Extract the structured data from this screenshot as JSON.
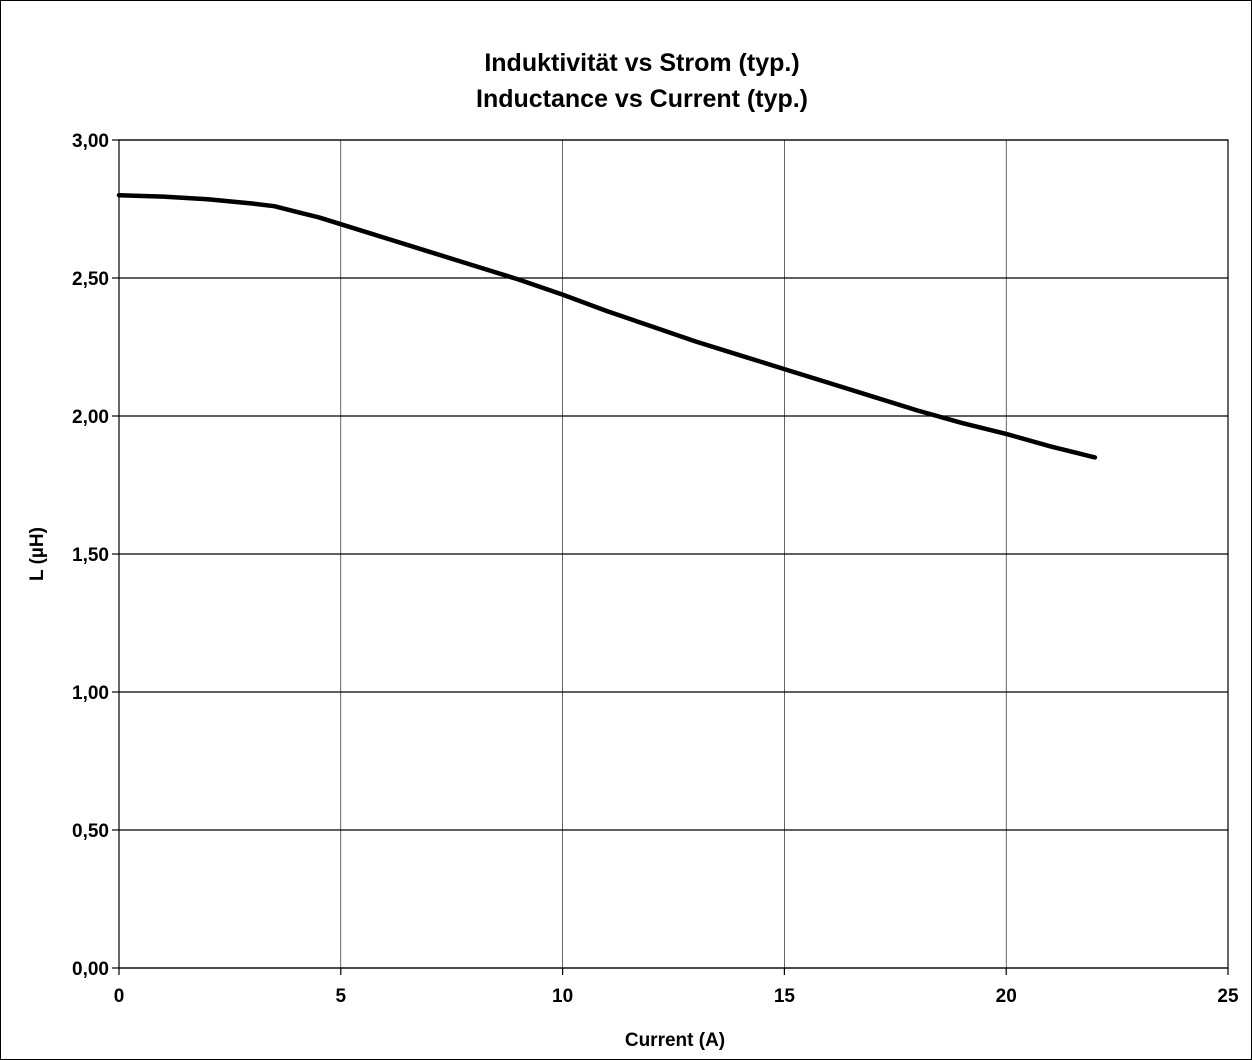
{
  "chart_data": {
    "type": "line",
    "title": "Induktivität vs Strom (typ.)",
    "subtitle": "Inductance vs Current (typ.)",
    "xlabel": "Current (A)",
    "ylabel": "L (µH)",
    "xlim": [
      0,
      25
    ],
    "ylim": [
      0,
      3
    ],
    "x_ticks": [
      0,
      5,
      10,
      15,
      20,
      25
    ],
    "x_tick_labels": [
      "0",
      "5",
      "10",
      "15",
      "20",
      "25"
    ],
    "y_ticks": [
      0,
      0.5,
      1,
      1.5,
      2,
      2.5,
      3
    ],
    "y_tick_labels": [
      "0,00",
      "0,50",
      "1,00",
      "1,50",
      "2,00",
      "2,50",
      "3,00"
    ],
    "grid": true,
    "legend": false,
    "series": [
      {
        "color": "#000000",
        "x": [
          0,
          1,
          2,
          3,
          3.5,
          4,
          4.5,
          5,
          6,
          7,
          8,
          9,
          10,
          11,
          12,
          13,
          14,
          15,
          16,
          17,
          18,
          19,
          20,
          21,
          22
        ],
        "y": [
          2.8,
          2.795,
          2.785,
          2.77,
          2.76,
          2.74,
          2.72,
          2.695,
          2.645,
          2.595,
          2.545,
          2.495,
          2.44,
          2.38,
          2.325,
          2.27,
          2.22,
          2.17,
          2.12,
          2.07,
          2.02,
          1.975,
          1.935,
          1.89,
          1.85
        ]
      }
    ]
  }
}
